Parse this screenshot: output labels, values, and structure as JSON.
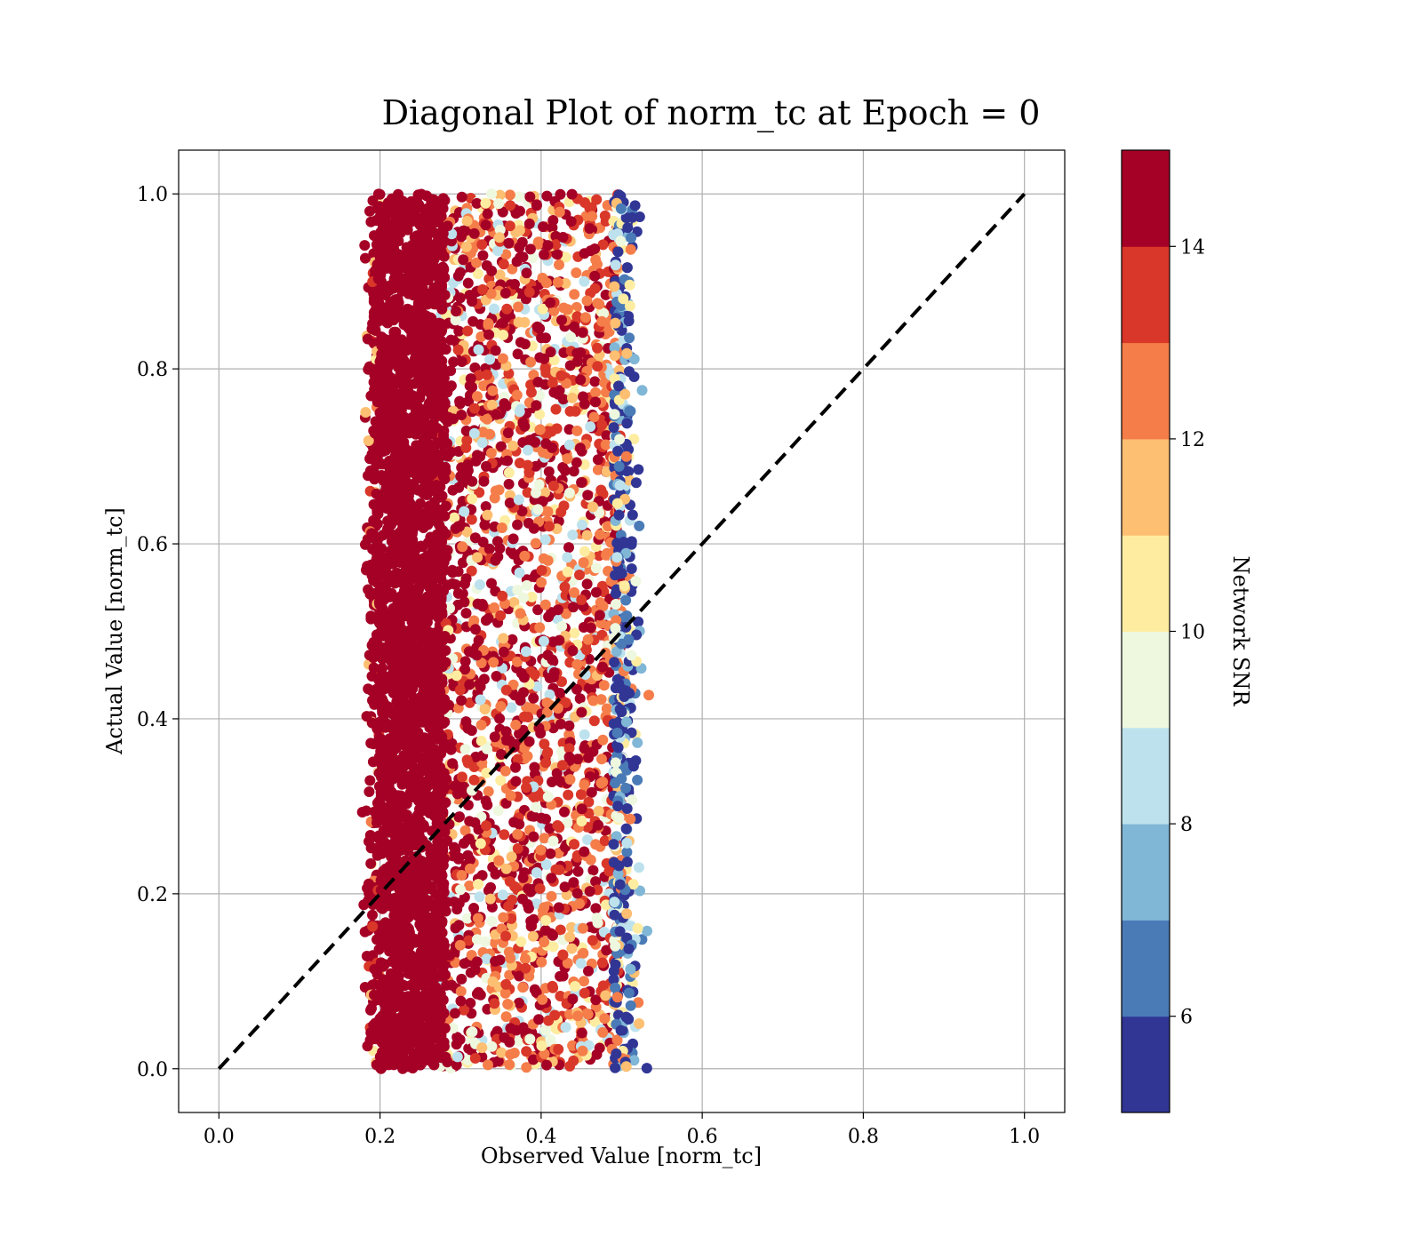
{
  "chart_data": {
    "type": "scatter",
    "title": "Diagonal Plot of norm_tc at Epoch = 0",
    "xlabel": "Observed Value [norm_tc]",
    "ylabel": "Actual Value [norm_tc]",
    "xlim": [
      -0.05,
      1.05
    ],
    "ylim": [
      -0.05,
      1.05
    ],
    "x_ticks": [
      "0.0",
      "0.2",
      "0.4",
      "0.6",
      "0.8",
      "1.0"
    ],
    "y_ticks": [
      "0.0",
      "0.2",
      "0.4",
      "0.6",
      "0.8",
      "1.0"
    ],
    "grid": true,
    "reference_line": {
      "style": "dashed",
      "color": "#000000",
      "from": [
        0.0,
        0.0
      ],
      "to": [
        1.0,
        1.0
      ]
    },
    "colorbar": {
      "label": "Network SNR",
      "range": [
        5,
        15
      ],
      "ticks": [
        "6",
        "8",
        "10",
        "12",
        "14"
      ],
      "bands": [
        {
          "from": 5,
          "to": 6,
          "color": "#313695"
        },
        {
          "from": 6,
          "to": 7,
          "color": "#4a7bb7"
        },
        {
          "from": 7,
          "to": 8,
          "color": "#80b6d6"
        },
        {
          "from": 8,
          "to": 9,
          "color": "#bde2ee"
        },
        {
          "from": 9,
          "to": 10,
          "color": "#eef8df"
        },
        {
          "from": 10,
          "to": 11,
          "color": "#feeda1"
        },
        {
          "from": 11,
          "to": 12,
          "color": "#fdbf71"
        },
        {
          "from": 12,
          "to": 13,
          "color": "#f57d4a"
        },
        {
          "from": 13,
          "to": 14,
          "color": "#d93729"
        },
        {
          "from": 14,
          "to": 15,
          "color": "#a50026"
        }
      ]
    },
    "point_cloud": {
      "x_range": [
        0.17,
        0.57
      ],
      "y_range": [
        0.0,
        1.0
      ],
      "description_regions": [
        {
          "x": [
            0.2,
            0.28
          ],
          "snr": 15
        },
        {
          "x": [
            0.28,
            0.5
          ],
          "snr_range": [
            8,
            15
          ]
        },
        {
          "x": [
            0.5,
            0.54
          ],
          "snr_range": [
            5,
            9
          ]
        }
      ]
    }
  }
}
